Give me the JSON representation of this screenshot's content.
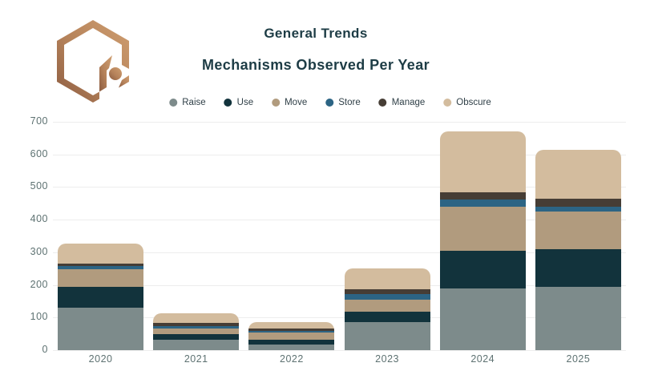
{
  "header": {
    "title": "General Trends",
    "subtitle": "Mechanisms Observed Per Year",
    "logo": "hexagon-brand-mark"
  },
  "colors": {
    "title_text": "#1d3c45",
    "axis_text": "#5e7272",
    "gridline": "#ededed",
    "legend_text": "#2f3f47",
    "logo_copper_light": "#cf9e70",
    "logo_copper_dark": "#8c5c41"
  },
  "chart_data": {
    "type": "bar",
    "stacked": true,
    "title": "General Trends",
    "subtitle": "Mechanisms Observed Per Year",
    "xlabel": "",
    "ylabel": "",
    "categories": [
      "2020",
      "2021",
      "2022",
      "2023",
      "2024",
      "2025"
    ],
    "series": [
      {
        "name": "Raise",
        "color": "#7d8b8b",
        "values": [
          130,
          31,
          18,
          86,
          190,
          195
        ]
      },
      {
        "name": "Use",
        "color": "#12333c",
        "values": [
          63,
          17,
          14,
          31,
          115,
          114
        ]
      },
      {
        "name": "Move",
        "color": "#b19b7e",
        "values": [
          56,
          19,
          22,
          39,
          135,
          115
        ]
      },
      {
        "name": "Store",
        "color": "#2c6484",
        "values": [
          8,
          8,
          6,
          15,
          22,
          15
        ]
      },
      {
        "name": "Manage",
        "color": "#463d35",
        "values": [
          8,
          8,
          6,
          15,
          22,
          25
        ]
      },
      {
        "name": "Obscure",
        "color": "#d3bc9e",
        "values": [
          61,
          30,
          20,
          64,
          186,
          150
        ]
      }
    ],
    "totals": [
      326,
      113,
      86,
      250,
      670,
      614
    ],
    "ylim": [
      0,
      700
    ],
    "yticks": [
      0,
      100,
      200,
      300,
      400,
      500,
      600,
      700
    ],
    "grid": true,
    "legend_position": "top"
  }
}
